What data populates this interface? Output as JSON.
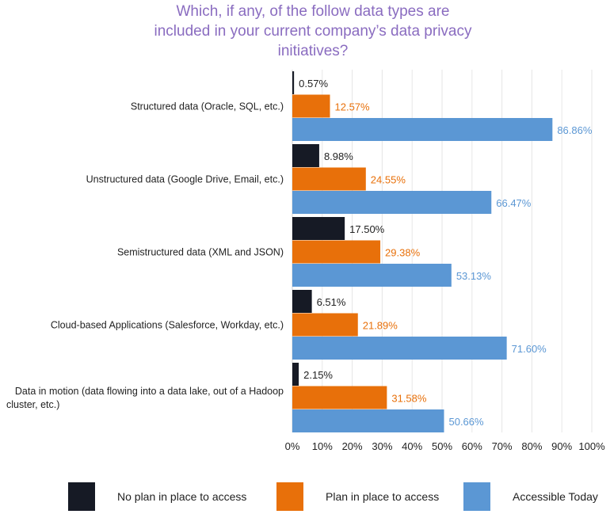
{
  "chart_data": {
    "type": "bar",
    "orientation": "horizontal",
    "title": "Which, if any, of the follow data types are included in your current company’s data privacy initiatives?",
    "categories": [
      "Structured data (Oracle, SQL, etc.)",
      "Unstructured data (Google Drive, Email, etc.)",
      "Semistructured data (XML and JSON)",
      "Cloud-based Applications (Salesforce, Workday, etc.)",
      "Data in motion (data flowing into a data lake, out of a Hadoop cluster, etc.)"
    ],
    "series": [
      {
        "name": "No plan in place to access",
        "color": "#161a25",
        "label_color": "#222222",
        "values": [
          0.57,
          8.98,
          17.5,
          6.51,
          2.15
        ]
      },
      {
        "name": "Plan in place to access",
        "color": "#e8700a",
        "label_color": "#e8700a",
        "values": [
          12.57,
          24.55,
          29.38,
          21.89,
          31.58
        ]
      },
      {
        "name": "Accessible Today",
        "color": "#5b97d4",
        "label_color": "#5b97d4",
        "values": [
          86.86,
          66.47,
          53.13,
          71.6,
          50.66
        ]
      }
    ],
    "value_labels": [
      [
        "0.57%",
        "8.98%",
        "17.50%",
        "6.51%",
        "2.15%"
      ],
      [
        "12.57%",
        "24.55%",
        "29.38%",
        "21.89%",
        "31.58%"
      ],
      [
        "86.86%",
        "66.47%",
        "53.13%",
        "71.60%",
        "50.66%"
      ]
    ],
    "xlim": [
      0,
      100
    ],
    "xticks": [
      "0%",
      "10%",
      "20%",
      "30%",
      "40%",
      "50%",
      "60%",
      "70%",
      "80%",
      "90%",
      "100%"
    ],
    "grid": true,
    "legend_position": "bottom"
  }
}
